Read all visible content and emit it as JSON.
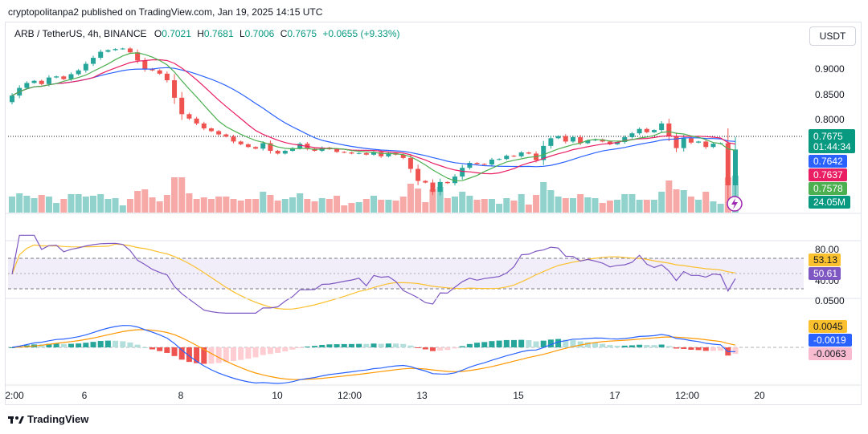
{
  "header": {
    "published": "cryptopolitanpa2 published on TradingView.com, Jan 19, 2025 14:15 UTC"
  },
  "legend": {
    "symbol": "ARB / TetherUS, 4h, BINANCE",
    "o_label": "O",
    "o": "0.7021",
    "h_label": "H",
    "h": "0.7681",
    "l_label": "L",
    "l": "0.7006",
    "c_label": "C",
    "c": "0.7675",
    "change": "+0.0655 (+9.33%)"
  },
  "currency_button": "USDT",
  "footer": {
    "brand": "TradingView"
  },
  "colors": {
    "up": "#26a69a",
    "down": "#ef5350",
    "ma_short": "#4caf50",
    "ma_mid": "#e91e63",
    "ma_long": "#2962ff",
    "rsi": "#7e57c2",
    "rsi_ma": "#fbc02d",
    "macd": "#2962ff",
    "signal": "#ff9800"
  },
  "chart_data": [
    {
      "type": "candlestick",
      "title": "ARB / TetherUS, 4h, BINANCE",
      "x_tick_labels": [
        "2:00",
        "6",
        "8",
        "10",
        "12:00",
        "13",
        "15",
        "17",
        "12:00",
        "20"
      ],
      "y_tick_labels": [
        "0.9000",
        "0.8500",
        "0.8000"
      ],
      "ylim": [
        0.68,
        0.96
      ],
      "series": [
        {
          "name": "price",
          "kind": "candles",
          "close": [
            0.866,
            0.88,
            0.889,
            0.893,
            0.887,
            0.899,
            0.901,
            0.896,
            0.905,
            0.912,
            0.924,
            0.935,
            0.946,
            0.949,
            0.951,
            0.952,
            0.945,
            0.93,
            0.915,
            0.912,
            0.906,
            0.894,
            0.862,
            0.832,
            0.824,
            0.815,
            0.806,
            0.801,
            0.795,
            0.791,
            0.782,
            0.777,
            0.772,
            0.769,
            0.779,
            0.765,
            0.76,
            0.765,
            0.77,
            0.778,
            0.769,
            0.765,
            0.771,
            0.768,
            0.763,
            0.762,
            0.76,
            0.761,
            0.758,
            0.763,
            0.755,
            0.761,
            0.758,
            0.752,
            0.732,
            0.71,
            0.707,
            0.69,
            0.708,
            0.706,
            0.718,
            0.734,
            0.743,
            0.741,
            0.74,
            0.749,
            0.75,
            0.756,
            0.755,
            0.762,
            0.76,
            0.748,
            0.774,
            0.788,
            0.792,
            0.782,
            0.79,
            0.779,
            0.784,
            0.786,
            0.782,
            0.777,
            0.781,
            0.79,
            0.797,
            0.805,
            0.799,
            0.803,
            0.815,
            0.791,
            0.77,
            0.788,
            0.78,
            0.782,
            0.772,
            0.778,
            0.779,
            0.702,
            0.7675
          ],
          "volume_last": "24.05M"
        },
        {
          "name": "ma_short",
          "last": "0.7578"
        },
        {
          "name": "ma_mid",
          "last": "0.7637"
        },
        {
          "name": "ma_long",
          "last": "0.7642"
        }
      ],
      "price_tags": {
        "last": "0.7675",
        "countdown": "01:44:34",
        "ma_long": "0.7642",
        "ma_mid": "0.7637",
        "ma_short": "0.7578",
        "volume": "24.05M"
      }
    },
    {
      "type": "line",
      "title": "",
      "y_tick_labels": [
        "80.00",
        "40.00"
      ],
      "ylim": [
        20,
        90
      ],
      "series": [
        {
          "name": "rsi",
          "last": "50.61"
        },
        {
          "name": "rsi_ma",
          "last": "53.13"
        }
      ]
    },
    {
      "type": "bar",
      "title": "",
      "y_tick_labels": [
        "0.0500"
      ],
      "series": [
        {
          "name": "macd",
          "last": "-0.0019"
        },
        {
          "name": "signal",
          "last": "0.0045"
        },
        {
          "name": "histogram",
          "last": "-0.0063"
        }
      ]
    }
  ]
}
